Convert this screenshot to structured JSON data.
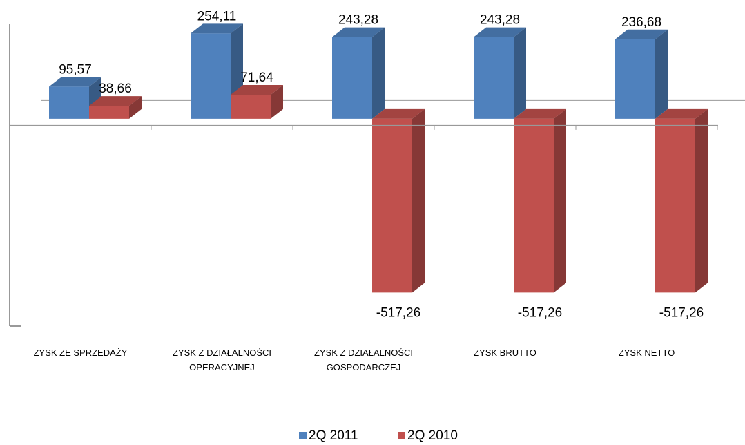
{
  "chart_data": {
    "type": "bar3d",
    "categories": [
      "ZYSK ZE SPRZEDAŻY",
      "ZYSK Z DZIAŁALNOŚCI OPERACYJNEJ",
      "ZYSK Z DZIAŁALNOŚCI GOSPODARCZEJ",
      "ZYSK BRUTTO",
      "ZYSK NETTO"
    ],
    "series": [
      {
        "name": "2Q 2011",
        "color": "#4f81bd",
        "values": [
          95.57,
          254.11,
          243.28,
          243.28,
          236.68
        ],
        "value_labels": [
          "95,57",
          "254,11",
          "243,28",
          "243,28",
          "236,68"
        ]
      },
      {
        "name": "2Q 2010",
        "color": "#c0504d",
        "values": [
          38.66,
          71.64,
          -517.26,
          -517.26,
          -517.26
        ],
        "value_labels": [
          "38,66",
          "71,64",
          "-517,26",
          "-517,26",
          "-517,26"
        ]
      }
    ],
    "ylim": [
      -600,
      300
    ],
    "legend": "bottom"
  }
}
